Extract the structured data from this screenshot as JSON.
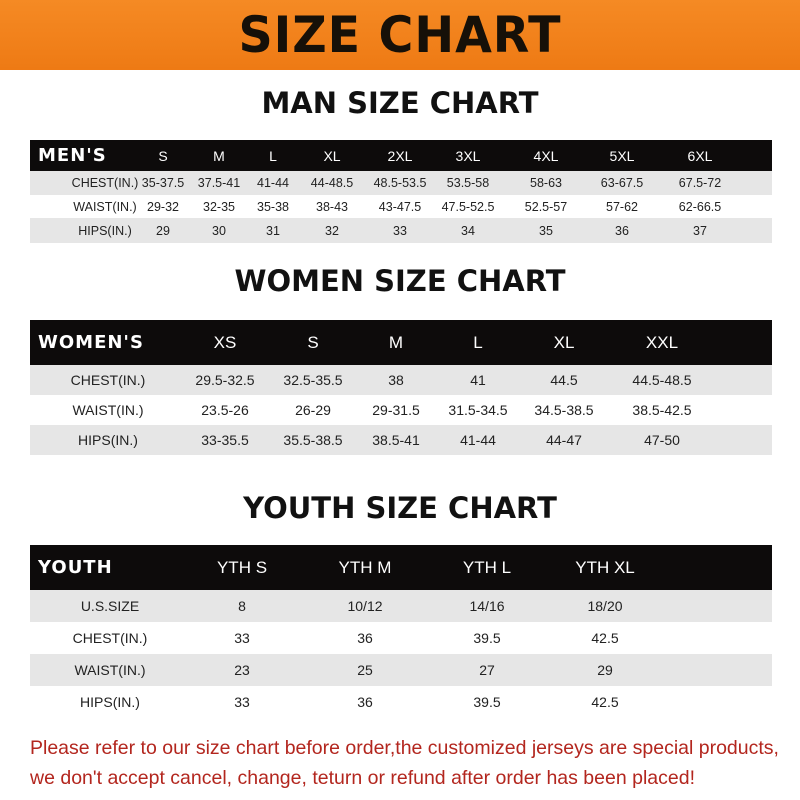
{
  "banner": {
    "title": "SIZE CHART",
    "color": "#f07f1a"
  },
  "men": {
    "title": "MAN SIZE CHART",
    "header": [
      "MEN'S",
      "S",
      "M",
      "L",
      "XL",
      "2XL",
      "3XL",
      "4XL",
      "5XL",
      "6XL"
    ],
    "rows": [
      [
        "CHEST(IN.)",
        "35-37.5",
        "37.5-41",
        "41-44",
        "44-48.5",
        "48.5-53.5",
        "53.5-58",
        "58-63",
        "63-67.5",
        "67.5-72"
      ],
      [
        "WAIST(IN.)",
        "29-32",
        "32-35",
        "35-38",
        "38-43",
        "43-47.5",
        "47.5-52.5",
        "52.5-57",
        "57-62",
        "62-66.5"
      ],
      [
        "HIPS(IN.)",
        "29",
        "30",
        "31",
        "32",
        "33",
        "34",
        "35",
        "36",
        "37"
      ]
    ]
  },
  "women": {
    "title": "WOMEN SIZE CHART",
    "header": [
      "WOMEN'S",
      "XS",
      "S",
      "M",
      "L",
      "XL",
      "XXL"
    ],
    "rows": [
      [
        "CHEST(IN.)",
        "29.5-32.5",
        "32.5-35.5",
        "38",
        "41",
        "44.5",
        "44.5-48.5"
      ],
      [
        "WAIST(IN.)",
        "23.5-26",
        "26-29",
        "29-31.5",
        "31.5-34.5",
        "34.5-38.5",
        "38.5-42.5"
      ],
      [
        "HIPS(IN.)",
        "33-35.5",
        "35.5-38.5",
        "38.5-41",
        "41-44",
        "44-47",
        "47-50"
      ]
    ]
  },
  "youth": {
    "title": "YOUTH SIZE CHART",
    "header": [
      "YOUTH",
      "YTH S",
      "YTH M",
      "YTH L",
      "YTH XL"
    ],
    "rows": [
      [
        "U.S.SIZE",
        "8",
        "10/12",
        "14/16",
        "18/20"
      ],
      [
        "CHEST(IN.)",
        "33",
        "36",
        "39.5",
        "42.5"
      ],
      [
        "WAIST(IN.)",
        "23",
        "25",
        "27",
        "29"
      ],
      [
        "HIPS(IN.)",
        "33",
        "36",
        "39.5",
        "42.5"
      ]
    ]
  },
  "footer": {
    "line1": "Please refer to our size chart before order,the customized jerseys are special products,",
    "line2": "we don't accept cancel, change, teturn or refund after order has been placed!",
    "color": "#b3261e"
  }
}
